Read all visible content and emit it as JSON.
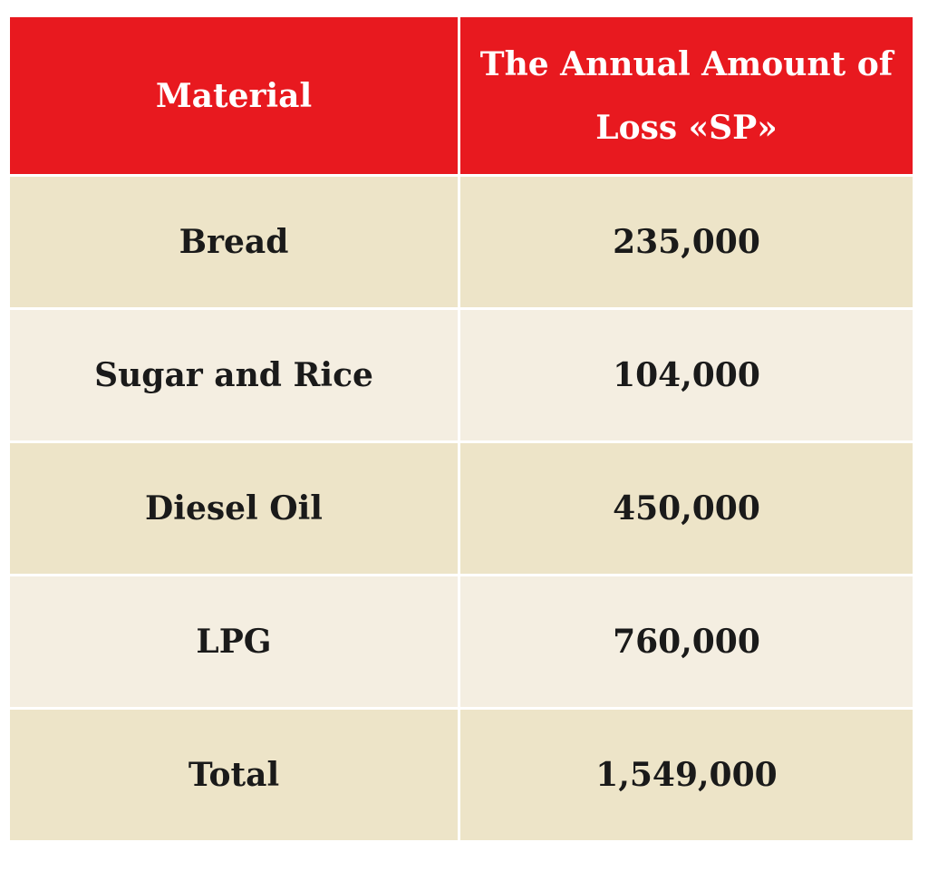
{
  "chart_data": {
    "type": "table",
    "columns": [
      "Material",
      "The Annual Amount of Loss «SP»"
    ],
    "header_lines": [
      "The Annual Amount of",
      "Loss «SP»"
    ],
    "rows": [
      {
        "material": "Bread",
        "amount": "235,000"
      },
      {
        "material": "Sugar and Rice",
        "amount": "104,000"
      },
      {
        "material": "Diesel Oil",
        "amount": "450,000"
      },
      {
        "material": "LPG",
        "amount": "760,000"
      },
      {
        "material": "Total",
        "amount": "1,549,000"
      }
    ]
  },
  "colors": {
    "header_bg": "#e8191f",
    "header_text": "#ffffff",
    "row_dark": "#ede4c8",
    "row_light": "#f4eee1",
    "text": "#1a1a1a"
  }
}
